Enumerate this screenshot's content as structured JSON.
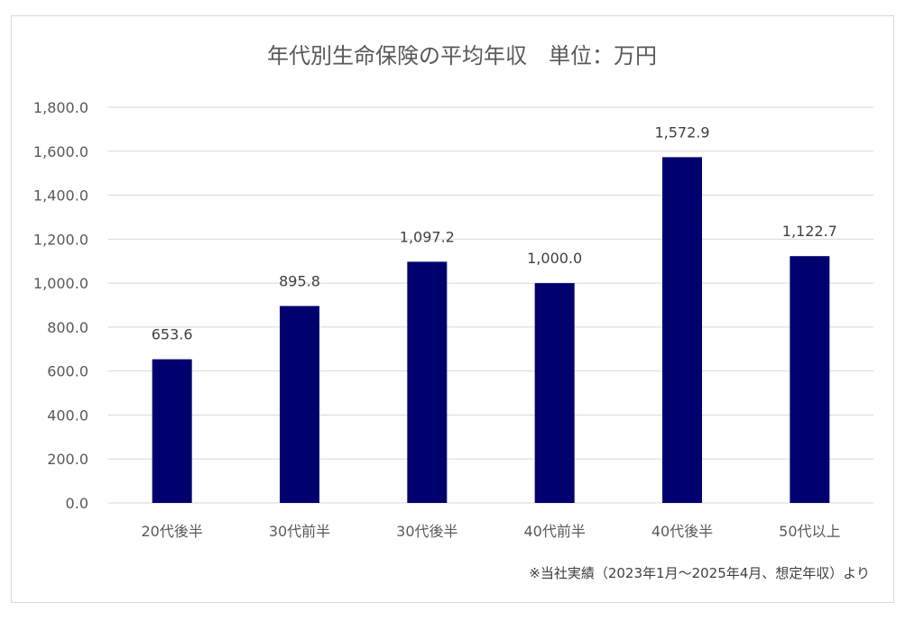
{
  "chart_data": {
    "type": "bar",
    "title": "年代別生命保険の平均年収　単位：万円",
    "categories": [
      "20代後半",
      "30代前半",
      "30代後半",
      "40代前半",
      "40代後半",
      "50代以上"
    ],
    "values": [
      653.6,
      895.8,
      1097.2,
      1000.0,
      1572.9,
      1122.7
    ],
    "value_labels": [
      "653.6",
      "895.8",
      "1,097.2",
      "1,000.0",
      "1,572.9",
      "1,122.7"
    ],
    "y_ticks": [
      "0.0",
      "200.0",
      "400.0",
      "600.0",
      "800.0",
      "1,000.0",
      "1,200.0",
      "1,400.0",
      "1,600.0",
      "1,800.0"
    ],
    "ylim": [
      0,
      1800
    ],
    "y_step": 200,
    "grid": true,
    "bar_color": "#00006e",
    "grid_color": "#d9d9d9",
    "legend": "none"
  },
  "footnote": "※当社実績（2023年1月～2025年4月、想定年収）より"
}
